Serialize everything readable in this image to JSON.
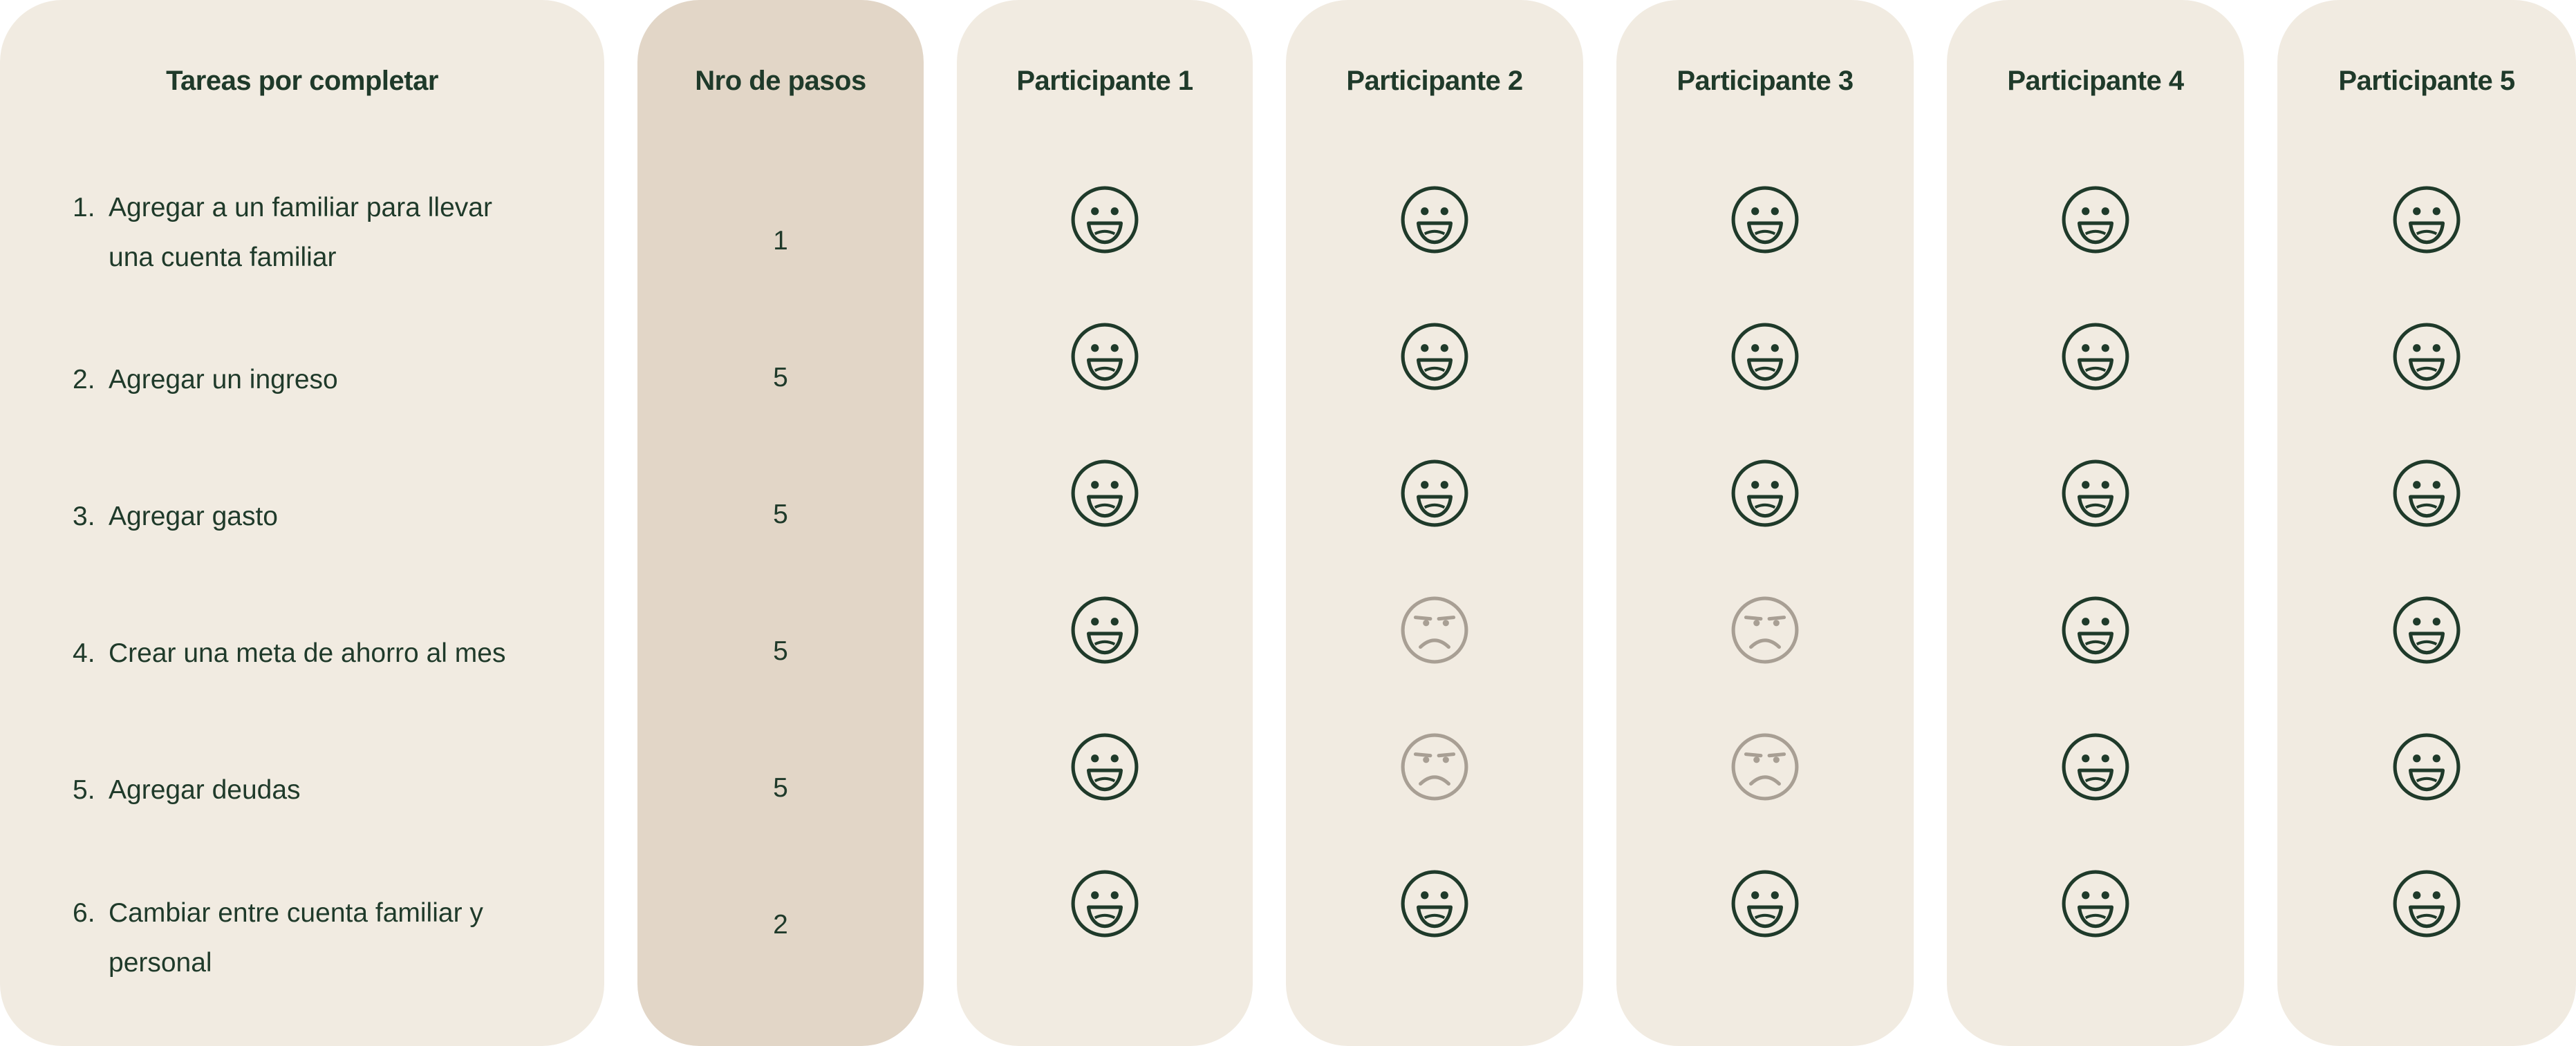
{
  "headers": {
    "tasks": "Tareas por completar",
    "steps": "Nro de pasos",
    "participants": [
      "Participante 1",
      "Participante 2",
      "Participante 3",
      "Participante 4",
      "Participante 5"
    ]
  },
  "tasks": [
    {
      "num": "1.",
      "label": "Agregar a un familiar para llevar una cuenta familiar",
      "steps": "1"
    },
    {
      "num": "2.",
      "label": "Agregar un ingreso",
      "steps": "5"
    },
    {
      "num": "3.",
      "label": "Agregar gasto",
      "steps": "5"
    },
    {
      "num": "4.",
      "label": "Crear una meta de ahorro al mes",
      "steps": "5"
    },
    {
      "num": "5.",
      "label": "Agregar deudas",
      "steps": "5"
    },
    {
      "num": "6.",
      "label": "Cambiar entre cuenta familiar y personal",
      "steps": "2"
    }
  ],
  "results": [
    [
      "happy",
      "happy",
      "happy",
      "happy",
      "happy",
      "happy"
    ],
    [
      "happy",
      "happy",
      "happy",
      "frustrated",
      "frustrated",
      "happy"
    ],
    [
      "happy",
      "happy",
      "happy",
      "frustrated",
      "frustrated",
      "happy"
    ],
    [
      "happy",
      "happy",
      "happy",
      "happy",
      "happy",
      "happy"
    ],
    [
      "happy",
      "happy",
      "happy",
      "happy",
      "happy",
      "happy"
    ]
  ],
  "colors": {
    "panel": "#f1ebe1",
    "steps_panel": "#e2d6c7",
    "text": "#1f3a2a",
    "happy_face": "#1f3a2a",
    "frustrated_face": "#a89f94"
  }
}
